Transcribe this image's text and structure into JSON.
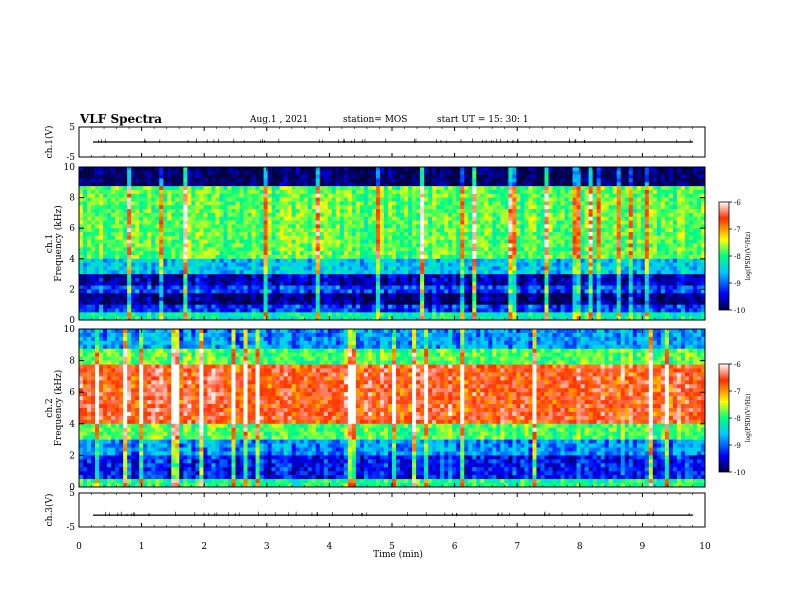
{
  "header": {
    "title": "VLF Spectra",
    "date": "Aug.1 , 2021",
    "station": "station= MOS",
    "start": "start UT = 15: 30: 1"
  },
  "chart_data": {
    "type": "heatmap",
    "xlabel": "Time (min)",
    "xlim": [
      0,
      10
    ],
    "x_ticks": [
      "0",
      "1",
      "2",
      "3",
      "4",
      "5",
      "6",
      "7",
      "8",
      "9",
      "10"
    ],
    "panels": [
      {
        "id": "ch1-wave",
        "kind": "waveform",
        "ylabel": "ch.1(V)",
        "ylim": [
          -5,
          5
        ],
        "y_ticks": [
          "5",
          "-5"
        ],
        "trace_level": 0
      },
      {
        "id": "ch1-spec",
        "kind": "spectrogram",
        "ylabel": "ch.1\nFrequency (kHz)",
        "ylabel_top": "ch.1",
        "ylabel_main": "Frequency (kHz)",
        "ylim": [
          0,
          10
        ],
        "y_ticks": [
          "0",
          "2",
          "4",
          "6",
          "8",
          "10"
        ],
        "band_profile": [
          {
            "f0": 0,
            "f1": 0.5,
            "level": 0.45
          },
          {
            "f0": 0.5,
            "f1": 1.0,
            "level": 0.2
          },
          {
            "f0": 1.0,
            "f1": 1.7,
            "level": 0.05
          },
          {
            "f0": 1.7,
            "f1": 2.2,
            "level": 0.22
          },
          {
            "f0": 2.2,
            "f1": 3.0,
            "level": 0.1
          },
          {
            "f0": 3.0,
            "f1": 4.0,
            "level": 0.35
          },
          {
            "f0": 4.0,
            "f1": 8.8,
            "level": 0.55
          },
          {
            "f0": 8.8,
            "f1": 10.0,
            "level": 0.02
          }
        ]
      },
      {
        "id": "ch2-spec",
        "kind": "spectrogram",
        "ylabel_top": "ch.2",
        "ylabel_main": "Frequency (kHz)",
        "ylim": [
          0,
          10
        ],
        "y_ticks": [
          "0",
          "2",
          "4",
          "6",
          "8",
          "10"
        ],
        "band_profile": [
          {
            "f0": 0,
            "f1": 0.6,
            "level": 0.5
          },
          {
            "f0": 0.6,
            "f1": 2.0,
            "level": 0.18
          },
          {
            "f0": 2.0,
            "f1": 3.0,
            "level": 0.3
          },
          {
            "f0": 3.0,
            "f1": 4.0,
            "level": 0.55
          },
          {
            "f0": 4.0,
            "f1": 7.8,
            "level": 0.85
          },
          {
            "f0": 7.8,
            "f1": 8.8,
            "level": 0.55
          },
          {
            "f0": 8.8,
            "f1": 10.0,
            "level": 0.3
          }
        ]
      },
      {
        "id": "ch3-wave",
        "kind": "waveform",
        "ylabel": "ch.3(V)",
        "ylim": [
          -5,
          5
        ],
        "y_ticks": [
          "5",
          "-5"
        ],
        "trace_level": -1.5
      }
    ],
    "colorbar": {
      "label": "log(PSD)(V²/Hz)",
      "range": [
        -10,
        -6
      ],
      "ticks": [
        "-6",
        "-7",
        "-8",
        "-9",
        "-10"
      ],
      "colors": [
        "#000040",
        "#0000ff",
        "#00c8ff",
        "#00ff80",
        "#ffff00",
        "#ff3000",
        "#ffffff"
      ]
    }
  }
}
